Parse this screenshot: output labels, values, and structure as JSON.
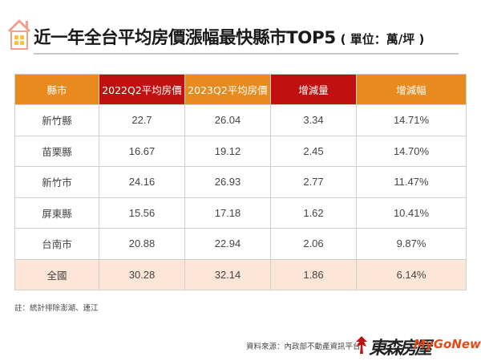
{
  "header": {
    "title": "近一年全台平均房價漲幅最快縣市TOP5",
    "unit": "( 單位：萬/坪 )"
  },
  "table": {
    "headers": [
      "縣市",
      "2022Q2平均房價",
      "2023Q2平均房價",
      "增減量",
      "增減幅"
    ],
    "header_colors": [
      "#e88a1d",
      "#c11010",
      "#e88a1d",
      "#c11010",
      "#e88a1d"
    ],
    "rows": [
      [
        "新竹縣",
        "22.7",
        "26.04",
        "3.34",
        "14.71%"
      ],
      [
        "苗栗縣",
        "16.67",
        "19.12",
        "2.45",
        "14.70%"
      ],
      [
        "新竹市",
        "24.16",
        "26.93",
        "2.77",
        "11.47%"
      ],
      [
        "屏東縣",
        "15.56",
        "17.18",
        "1.62",
        "10.41%"
      ],
      [
        "台南市",
        "20.88",
        "22.94",
        "2.06",
        "9.87%"
      ],
      [
        "全國",
        "30.28",
        "32.14",
        "1.86",
        "6.14%"
      ]
    ],
    "highlight_row_color": "#fde6d8"
  },
  "footnote": "註：統計排除澎湖、連江",
  "source": "資料來源：內政部不動產資訊平台",
  "brand": {
    "name_cn": "東森房屋",
    "name_en": "MyGoNews"
  },
  "icons": {
    "logo": "house-icon"
  }
}
